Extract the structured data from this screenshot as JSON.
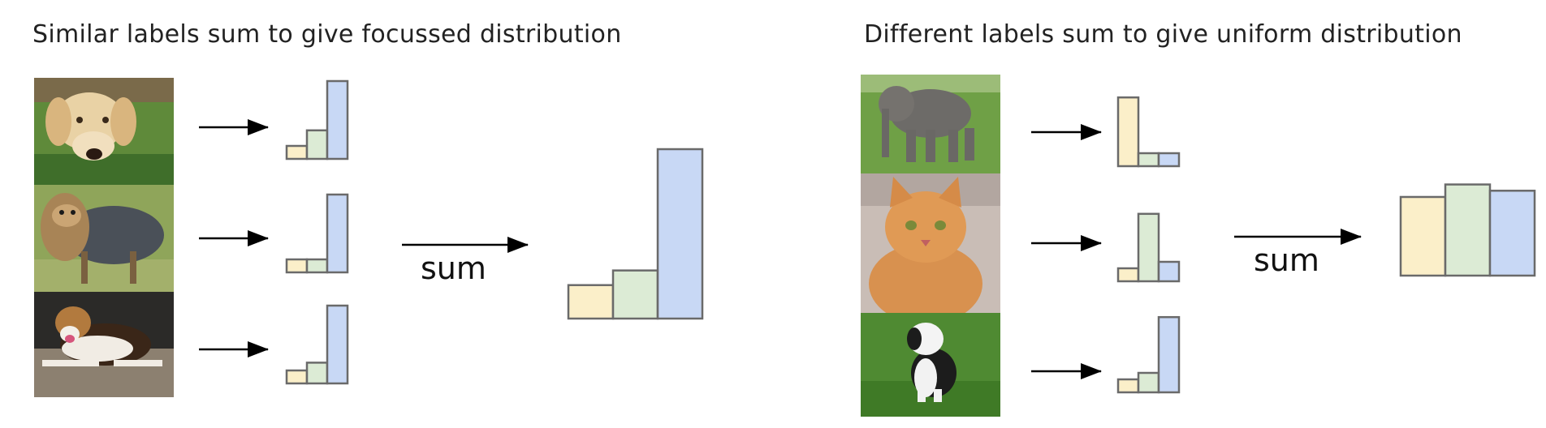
{
  "colors": {
    "label_a": "#fbefc9",
    "label_b": "#dcebd5",
    "label_c": "#c8d8f5",
    "arrow": "#000000",
    "outline": "#6a6a6a"
  },
  "panels": [
    {
      "id": "similar",
      "title": "Similar labels sum to give focussed distribution",
      "sum_label": "sum",
      "inputs": [
        {
          "photo_icon": "golden-retriever-photo",
          "distribution": [
            1,
            2.2,
            6
          ]
        },
        {
          "photo_icon": "yorkshire-terrier-photo",
          "distribution": [
            1,
            1,
            6
          ]
        },
        {
          "photo_icon": "beagle-photo",
          "distribution": [
            1,
            1.6,
            6
          ]
        }
      ],
      "result": [
        1.6,
        2.3,
        8.1
      ]
    },
    {
      "id": "different",
      "title": "Different labels sum to give uniform distribution",
      "sum_label": "sum",
      "inputs": [
        {
          "photo_icon": "elephant-photo",
          "distribution": [
            5.3,
            1,
            1
          ]
        },
        {
          "photo_icon": "cat-photo",
          "distribution": [
            1,
            5.2,
            1.5
          ]
        },
        {
          "photo_icon": "sheepdog-puppy-photo",
          "distribution": [
            1,
            1.5,
            5.8
          ]
        }
      ],
      "result": [
        6.3,
        7.3,
        6.8
      ]
    }
  ]
}
